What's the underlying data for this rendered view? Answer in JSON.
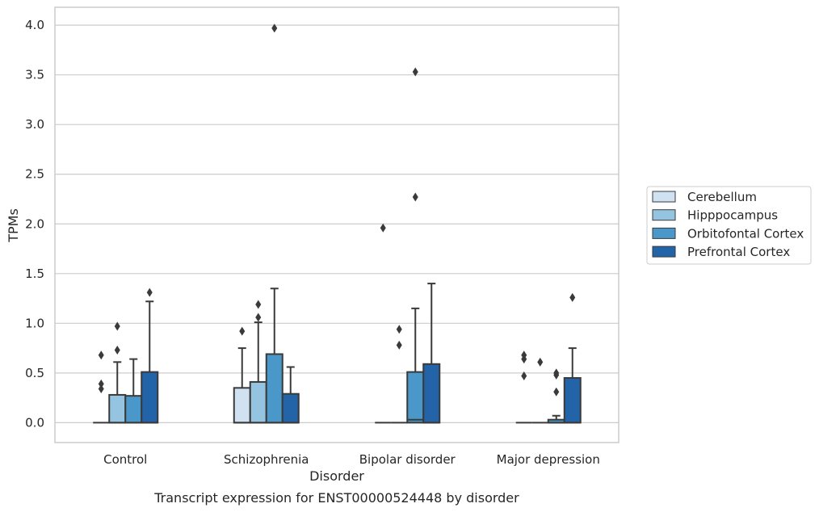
{
  "caption": "Transcript expression for ENST00000524448 by disorder",
  "colors": {
    "Cerebellum": "#d0e1f2",
    "Hipppocampus": "#94c4df",
    "Orbitofontal Cortex": "#4a98c9",
    "Prefrontal Cortex": "#2363a7",
    "grid": "#cccccc",
    "frame": "#cccccc",
    "edge": "#3a3a3a"
  },
  "chart_data": {
    "type": "box",
    "xlabel": "Disorder",
    "ylabel": "TPMs",
    "ylim": [
      -0.2,
      4.18
    ],
    "yticks": [
      0.0,
      0.5,
      1.0,
      1.5,
      2.0,
      2.5,
      3.0,
      3.5,
      4.0
    ],
    "ytick_labels": [
      "0.0",
      "0.5",
      "1.0",
      "1.5",
      "2.0",
      "2.5",
      "3.0",
      "3.5",
      "4.0"
    ],
    "grid": true,
    "legend_position": "right",
    "categories": [
      "Control",
      "Schizophrenia",
      "Bipolar disorder",
      "Major depression"
    ],
    "series": [
      {
        "name": "Cerebellum",
        "boxes": [
          {
            "q1": 0.0,
            "median": 0.0,
            "q3": 0.0,
            "whislo": 0.0,
            "whishi": 0.0,
            "fliers": [
              0.68,
              0.39,
              0.34
            ]
          },
          {
            "q1": 0.0,
            "median": 0.0,
            "q3": 0.35,
            "whislo": 0.0,
            "whishi": 0.75,
            "fliers": [
              0.92
            ]
          },
          {
            "q1": 0.0,
            "median": 0.0,
            "q3": 0.0,
            "whislo": 0.0,
            "whishi": 0.0,
            "fliers": [
              1.96
            ]
          },
          {
            "q1": 0.0,
            "median": 0.0,
            "q3": 0.0,
            "whislo": 0.0,
            "whishi": 0.0,
            "fliers": [
              0.68,
              0.64,
              0.47
            ]
          }
        ]
      },
      {
        "name": "Hipppocampus",
        "boxes": [
          {
            "q1": 0.0,
            "median": 0.0,
            "q3": 0.28,
            "whislo": 0.0,
            "whishi": 0.61,
            "fliers": [
              0.97,
              0.73
            ]
          },
          {
            "q1": 0.0,
            "median": 0.0,
            "q3": 0.41,
            "whislo": 0.0,
            "whishi": 1.01,
            "fliers": [
              1.19,
              1.06
            ]
          },
          {
            "q1": 0.0,
            "median": 0.0,
            "q3": 0.0,
            "whislo": 0.0,
            "whishi": 0.0,
            "fliers": [
              0.94,
              0.78
            ]
          },
          {
            "q1": 0.0,
            "median": 0.0,
            "q3": 0.0,
            "whislo": 0.0,
            "whishi": 0.0,
            "fliers": [
              0.61
            ]
          }
        ]
      },
      {
        "name": "Orbitofontal Cortex",
        "boxes": [
          {
            "q1": 0.0,
            "median": 0.0,
            "q3": 0.27,
            "whislo": 0.0,
            "whishi": 0.64,
            "fliers": []
          },
          {
            "q1": 0.0,
            "median": 0.0,
            "q3": 0.69,
            "whislo": 0.0,
            "whishi": 1.35,
            "fliers": [
              3.97
            ]
          },
          {
            "q1": 0.0,
            "median": 0.03,
            "q3": 0.51,
            "whislo": 0.0,
            "whishi": 1.15,
            "fliers": [
              3.53,
              2.27
            ]
          },
          {
            "q1": 0.0,
            "median": 0.0,
            "q3": 0.03,
            "whislo": 0.0,
            "whishi": 0.07,
            "fliers": [
              0.5,
              0.48,
              0.31
            ]
          }
        ]
      },
      {
        "name": "Prefrontal Cortex",
        "boxes": [
          {
            "q1": 0.0,
            "median": 0.0,
            "q3": 0.51,
            "whislo": 0.0,
            "whishi": 1.22,
            "fliers": [
              1.31
            ]
          },
          {
            "q1": 0.0,
            "median": 0.0,
            "q3": 0.29,
            "whislo": 0.0,
            "whishi": 0.56,
            "fliers": []
          },
          {
            "q1": 0.0,
            "median": 0.0,
            "q3": 0.59,
            "whislo": 0.0,
            "whishi": 1.4,
            "fliers": []
          },
          {
            "q1": 0.0,
            "median": 0.0,
            "q3": 0.45,
            "whislo": 0.0,
            "whishi": 0.75,
            "fliers": [
              1.26
            ]
          }
        ]
      }
    ]
  }
}
